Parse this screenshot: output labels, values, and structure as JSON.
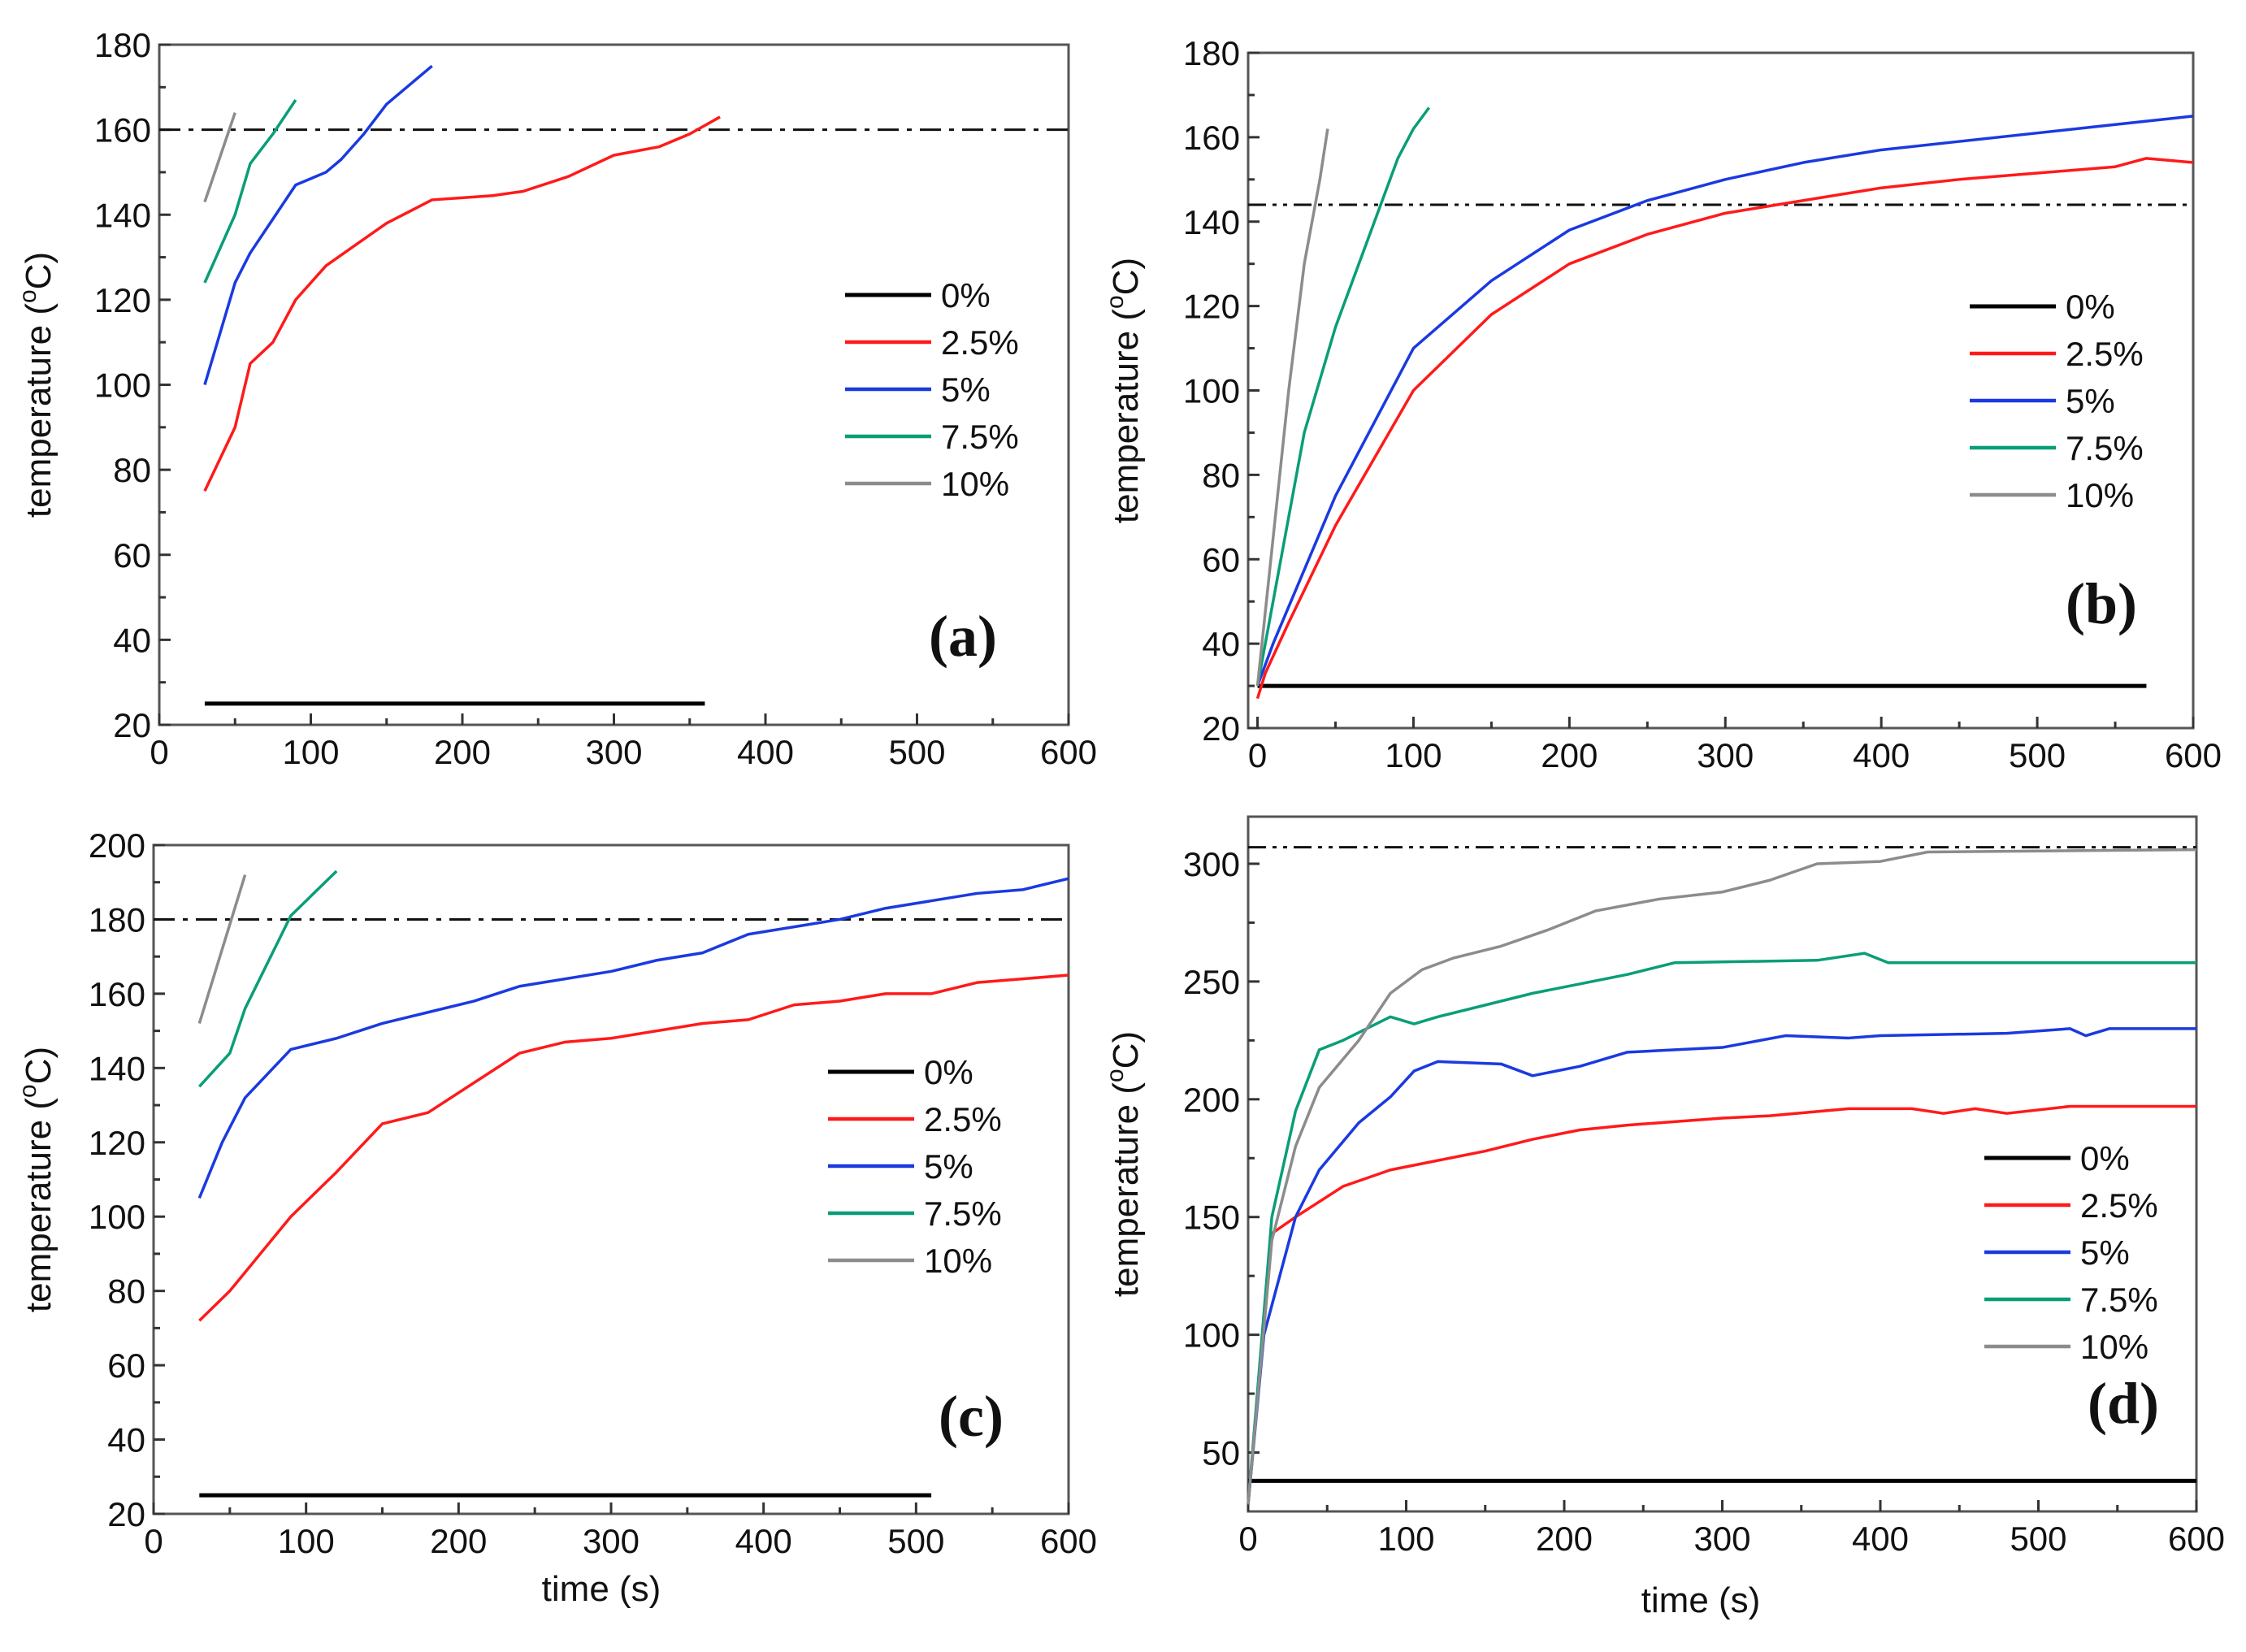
{
  "chart_data": [
    {
      "type": "line",
      "panel_label": "(a)",
      "ylabel": "temperature (",
      "ylabel_sup": "o",
      "ylabel_end": "C)",
      "xlabel": "",
      "xlim": [
        0,
        600
      ],
      "ylim": [
        20,
        180
      ],
      "xticks": [
        0,
        100,
        200,
        300,
        400,
        500,
        600
      ],
      "yticks": [
        20,
        40,
        60,
        80,
        100,
        120,
        140,
        160,
        180
      ],
      "reference_line": {
        "y": 160,
        "style": "dash-dot"
      },
      "series": [
        {
          "name": "0%",
          "color": "#000000",
          "points": [
            [
              30,
              25
            ],
            [
              360,
              25
            ]
          ]
        },
        {
          "name": "2.5%",
          "color": "#ff1a1a",
          "points": [
            [
              30,
              75
            ],
            [
              50,
              90
            ],
            [
              60,
              105
            ],
            [
              75,
              110
            ],
            [
              90,
              120
            ],
            [
              110,
              128
            ],
            [
              130,
              133
            ],
            [
              150,
              138
            ],
            [
              180,
              143.5
            ],
            [
              200,
              144
            ],
            [
              220,
              144.5
            ],
            [
              240,
              145.5
            ],
            [
              270,
              149
            ],
            [
              300,
              154
            ],
            [
              330,
              156
            ],
            [
              350,
              159
            ],
            [
              370,
              163
            ]
          ]
        },
        {
          "name": "5%",
          "color": "#1a3ae0",
          "points": [
            [
              30,
              100
            ],
            [
              50,
              124
            ],
            [
              60,
              131
            ],
            [
              75,
              139
            ],
            [
              90,
              147
            ],
            [
              110,
              150
            ],
            [
              120,
              153
            ],
            [
              135,
              159
            ],
            [
              150,
              166
            ],
            [
              180,
              175
            ]
          ]
        },
        {
          "name": "7.5%",
          "color": "#0a9e78",
          "points": [
            [
              30,
              124
            ],
            [
              50,
              140
            ],
            [
              60,
              152
            ],
            [
              75,
              159
            ],
            [
              90,
              167
            ]
          ]
        },
        {
          "name": "10%",
          "color": "#8c8c8c",
          "points": [
            [
              30,
              143
            ],
            [
              50,
              164
            ]
          ]
        }
      ]
    },
    {
      "type": "line",
      "panel_label": "(b)",
      "ylabel": "temperature (",
      "ylabel_sup": "o",
      "ylabel_end": "C)",
      "xlabel": "",
      "xlim": [
        -6,
        600
      ],
      "ylim": [
        20,
        180
      ],
      "xticks": [
        0,
        100,
        200,
        300,
        400,
        500,
        600
      ],
      "yticks": [
        20,
        40,
        60,
        80,
        100,
        120,
        140,
        160,
        180
      ],
      "reference_line": {
        "y": 144,
        "style": "dash-dot-dot"
      },
      "series": [
        {
          "name": "0%",
          "color": "#000000",
          "points": [
            [
              0,
              30
            ],
            [
              570,
              30
            ]
          ]
        },
        {
          "name": "2.5%",
          "color": "#ff1a1a",
          "points": [
            [
              0,
              27
            ],
            [
              5,
              33
            ],
            [
              20,
              45
            ],
            [
              50,
              68
            ],
            [
              100,
              100
            ],
            [
              150,
              118
            ],
            [
              200,
              130
            ],
            [
              250,
              137
            ],
            [
              300,
              142
            ],
            [
              350,
              145
            ],
            [
              400,
              148
            ],
            [
              450,
              150
            ],
            [
              500,
              151.5
            ],
            [
              550,
              153
            ],
            [
              570,
              155
            ],
            [
              600,
              154
            ]
          ]
        },
        {
          "name": "5%",
          "color": "#1a3ae0",
          "points": [
            [
              0,
              30
            ],
            [
              10,
              40
            ],
            [
              50,
              75
            ],
            [
              100,
              110
            ],
            [
              150,
              126
            ],
            [
              200,
              138
            ],
            [
              250,
              145
            ],
            [
              300,
              150
            ],
            [
              350,
              154
            ],
            [
              400,
              157
            ],
            [
              450,
              159
            ],
            [
              500,
              161
            ],
            [
              550,
              163
            ],
            [
              600,
              165
            ]
          ]
        },
        {
          "name": "7.5%",
          "color": "#0a9e78",
          "points": [
            [
              0,
              30
            ],
            [
              15,
              60
            ],
            [
              30,
              90
            ],
            [
              50,
              115
            ],
            [
              70,
              135
            ],
            [
              90,
              155
            ],
            [
              100,
              162
            ],
            [
              110,
              167
            ]
          ]
        },
        {
          "name": "10%",
          "color": "#8c8c8c",
          "points": [
            [
              0,
              30
            ],
            [
              10,
              65
            ],
            [
              20,
              100
            ],
            [
              30,
              130
            ],
            [
              40,
              150
            ],
            [
              45,
              162
            ]
          ]
        }
      ]
    },
    {
      "type": "line",
      "panel_label": "(c)",
      "ylabel": "temperature (",
      "ylabel_sup": "o",
      "ylabel_end": "C)",
      "xlabel": "time (s)",
      "xlim": [
        0,
        600
      ],
      "ylim": [
        20,
        200
      ],
      "xticks": [
        0,
        100,
        200,
        300,
        400,
        500,
        600
      ],
      "yticks": [
        20,
        40,
        60,
        80,
        100,
        120,
        140,
        160,
        180,
        200
      ],
      "reference_line": {
        "y": 180,
        "style": "dash-dot"
      },
      "series": [
        {
          "name": "0%",
          "color": "#000000",
          "points": [
            [
              30,
              25
            ],
            [
              510,
              25
            ]
          ]
        },
        {
          "name": "2.5%",
          "color": "#ff1a1a",
          "points": [
            [
              30,
              72
            ],
            [
              50,
              80
            ],
            [
              70,
              90
            ],
            [
              90,
              100
            ],
            [
              120,
              112
            ],
            [
              150,
              125
            ],
            [
              180,
              128
            ],
            [
              240,
              144
            ],
            [
              270,
              147
            ],
            [
              300,
              148
            ],
            [
              360,
              152
            ],
            [
              390,
              153
            ],
            [
              420,
              157
            ],
            [
              450,
              158
            ],
            [
              480,
              160
            ],
            [
              510,
              160
            ],
            [
              540,
              163
            ],
            [
              600,
              165
            ]
          ]
        },
        {
          "name": "5%",
          "color": "#1a3ae0",
          "points": [
            [
              30,
              105
            ],
            [
              45,
              120
            ],
            [
              60,
              132
            ],
            [
              90,
              145
            ],
            [
              120,
              148
            ],
            [
              150,
              152
            ],
            [
              180,
              155
            ],
            [
              210,
              158
            ],
            [
              240,
              162
            ],
            [
              300,
              166
            ],
            [
              330,
              169
            ],
            [
              360,
              171
            ],
            [
              390,
              176
            ],
            [
              420,
              178
            ],
            [
              450,
              180
            ],
            [
              480,
              183
            ],
            [
              510,
              185
            ],
            [
              540,
              187
            ],
            [
              570,
              188
            ],
            [
              600,
              191
            ]
          ]
        },
        {
          "name": "7.5%",
          "color": "#0a9e78",
          "points": [
            [
              30,
              135
            ],
            [
              50,
              144
            ],
            [
              60,
              156
            ],
            [
              90,
              181
            ],
            [
              120,
              193
            ]
          ]
        },
        {
          "name": "10%",
          "color": "#8c8c8c",
          "points": [
            [
              30,
              152
            ],
            [
              60,
              192
            ]
          ]
        }
      ]
    },
    {
      "type": "line",
      "panel_label": "(d)",
      "ylabel": "temperature (",
      "ylabel_sup": "o",
      "ylabel_end": "C)",
      "xlabel": "time (s)",
      "xlim": [
        0,
        600
      ],
      "ylim": [
        25,
        320
      ],
      "xticks": [
        0,
        100,
        200,
        300,
        400,
        500,
        600
      ],
      "yticks": [
        50,
        100,
        150,
        200,
        250,
        300
      ],
      "reference_line": {
        "y": 307,
        "style": "dash-dot-dot"
      },
      "series": [
        {
          "name": "0%",
          "color": "#000000",
          "points": [
            [
              0,
              38
            ],
            [
              600,
              38
            ]
          ]
        },
        {
          "name": "2.5%",
          "color": "#ff1a1a",
          "points": [
            [
              0,
              28
            ],
            [
              15,
              143
            ],
            [
              30,
              150
            ],
            [
              60,
              163
            ],
            [
              90,
              170
            ],
            [
              120,
              174
            ],
            [
              150,
              178
            ],
            [
              180,
              183
            ],
            [
              210,
              187
            ],
            [
              240,
              189
            ],
            [
              300,
              192
            ],
            [
              330,
              193
            ],
            [
              380,
              196
            ],
            [
              420,
              196
            ],
            [
              440,
              194
            ],
            [
              460,
              196
            ],
            [
              480,
              194
            ],
            [
              520,
              197
            ],
            [
              600,
              197
            ]
          ]
        },
        {
          "name": "5%",
          "color": "#1a3ae0",
          "points": [
            [
              0,
              28
            ],
            [
              10,
              100
            ],
            [
              30,
              150
            ],
            [
              45,
              170
            ],
            [
              70,
              190
            ],
            [
              90,
              201
            ],
            [
              105,
              212
            ],
            [
              120,
              216
            ],
            [
              160,
              215
            ],
            [
              180,
              210
            ],
            [
              210,
              214
            ],
            [
              240,
              220
            ],
            [
              270,
              221
            ],
            [
              300,
              222
            ],
            [
              340,
              227
            ],
            [
              380,
              226
            ],
            [
              400,
              227
            ],
            [
              480,
              228
            ],
            [
              520,
              230
            ],
            [
              530,
              227
            ],
            [
              545,
              230
            ],
            [
              600,
              230
            ]
          ]
        },
        {
          "name": "7.5%",
          "color": "#0a9e78",
          "points": [
            [
              0,
              28
            ],
            [
              15,
              150
            ],
            [
              30,
              195
            ],
            [
              45,
              221
            ],
            [
              60,
              225
            ],
            [
              90,
              235
            ],
            [
              105,
              232
            ],
            [
              120,
              235
            ],
            [
              150,
              240
            ],
            [
              180,
              245
            ],
            [
              210,
              249
            ],
            [
              240,
              253
            ],
            [
              270,
              258
            ],
            [
              360,
              259
            ],
            [
              390,
              262
            ],
            [
              405,
              258
            ],
            [
              600,
              258
            ]
          ]
        },
        {
          "name": "10%",
          "color": "#8c8c8c",
          "points": [
            [
              0,
              28
            ],
            [
              15,
              140
            ],
            [
              30,
              180
            ],
            [
              45,
              205
            ],
            [
              70,
              225
            ],
            [
              90,
              245
            ],
            [
              110,
              255
            ],
            [
              130,
              260
            ],
            [
              160,
              265
            ],
            [
              190,
              272
            ],
            [
              220,
              280
            ],
            [
              260,
              285
            ],
            [
              300,
              288
            ],
            [
              330,
              293
            ],
            [
              360,
              300
            ],
            [
              400,
              301
            ],
            [
              430,
              305
            ],
            [
              600,
              306
            ]
          ]
        }
      ]
    }
  ]
}
